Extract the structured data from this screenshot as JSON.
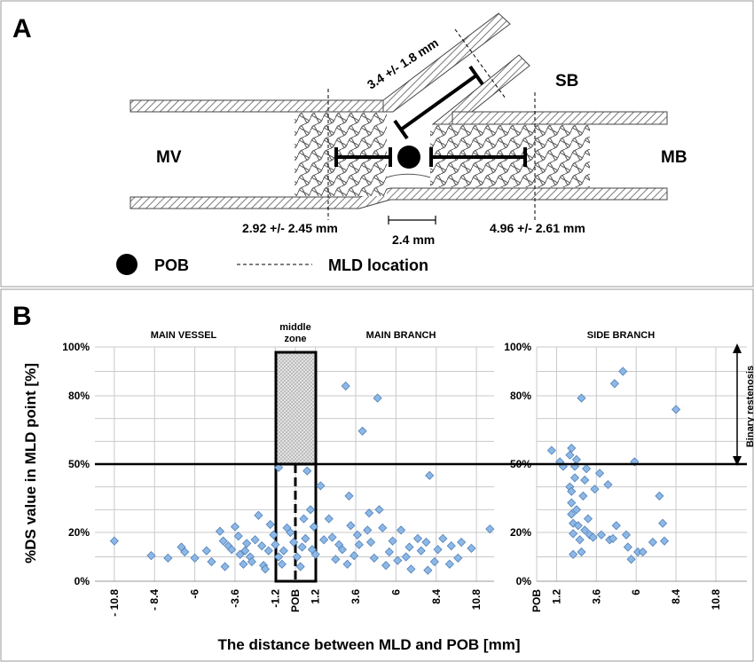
{
  "panel_a": {
    "label": "A",
    "mv": "MV",
    "mb": "MB",
    "sb": "SB",
    "dist_mv": "2.92 +/- 2.45 mm",
    "dist_mb": "4.96 +/- 2.61 mm",
    "dist_sb": "3.4 +/- 1.8 mm",
    "scale": "2.4 mm",
    "legend_pob": "POB",
    "legend_mld": "MLD location"
  },
  "panel_b": {
    "label": "B",
    "section_mv": "MAIN VESSEL",
    "section_middle_1": "middle",
    "section_middle_2": "zone",
    "section_mb": "MAIN BRANCH",
    "section_sb": "SIDE BRANCH",
    "annotation": "Binary restenosis"
  },
  "chart_data": [
    {
      "type": "scatter",
      "title": "MAIN VESSEL / MAIN BRANCH",
      "xlabel": "The distance between MLD and POB [mm]",
      "ylabel": "%DS value in MLD point [%]",
      "x_ticks": [
        "- 10.8",
        "- 8.4",
        "-6",
        "-3.6",
        "-1.2",
        "POB",
        "1.2",
        "3.6",
        "6",
        "8.4",
        "10.8"
      ],
      "y_ticks": [
        "0%",
        "20%",
        "50%",
        "80%",
        "100%"
      ],
      "xlim": [
        -12,
        12
      ],
      "ylim": [
        0,
        100
      ],
      "threshold": 50,
      "middle_zone": [
        -1.2,
        1.2
      ],
      "points": [
        [
          -10.8,
          16.5
        ],
        [
          -8.6,
          10.5
        ],
        [
          -7.6,
          9.5
        ],
        [
          -6.8,
          14
        ],
        [
          -6.6,
          12
        ],
        [
          -6.0,
          9.5
        ],
        [
          -5.3,
          12.5
        ],
        [
          -4.5,
          20.5
        ],
        [
          -4.3,
          16.5
        ],
        [
          -4.0,
          14.5
        ],
        [
          -3.8,
          13
        ],
        [
          -3.6,
          22.5
        ],
        [
          -3.4,
          18.5
        ],
        [
          -3.3,
          11
        ],
        [
          -3.1,
          7
        ],
        [
          -3.0,
          12.5
        ],
        [
          -2.9,
          15.5
        ],
        [
          -2.7,
          10
        ],
        [
          -2.6,
          8
        ],
        [
          -2.4,
          17
        ],
        [
          -2.2,
          27.5
        ],
        [
          -2.0,
          14.5
        ],
        [
          -1.9,
          6.5
        ],
        [
          -1.6,
          12.5
        ],
        [
          -1.5,
          23.5
        ],
        [
          -1.3,
          19
        ],
        [
          -1.2,
          15
        ],
        [
          -1.0,
          48.5
        ],
        [
          -1.0,
          10
        ],
        [
          -0.8,
          7
        ],
        [
          -0.7,
          12.5
        ],
        [
          -0.5,
          22
        ],
        [
          -0.3,
          20
        ],
        [
          -0.1,
          16
        ],
        [
          0.1,
          10
        ],
        [
          0.3,
          6
        ],
        [
          0.4,
          14
        ],
        [
          0.5,
          26
        ],
        [
          0.6,
          17.5
        ],
        [
          0.7,
          47
        ],
        [
          0.9,
          30
        ],
        [
          1.0,
          13
        ],
        [
          1.1,
          22.5
        ],
        [
          1.2,
          11
        ],
        [
          1.5,
          40.5
        ],
        [
          1.7,
          17
        ],
        [
          2.0,
          26
        ],
        [
          2.2,
          18
        ],
        [
          2.6,
          15
        ],
        [
          2.8,
          13
        ],
        [
          3.0,
          84
        ],
        [
          3.2,
          36
        ],
        [
          3.3,
          23
        ],
        [
          3.5,
          10.5
        ],
        [
          3.7,
          19
        ],
        [
          3.8,
          15
        ],
        [
          4.0,
          64.5
        ],
        [
          4.3,
          21
        ],
        [
          4.4,
          28.5
        ],
        [
          4.5,
          16
        ],
        [
          4.7,
          9.5
        ],
        [
          4.9,
          79
        ],
        [
          5.0,
          30
        ],
        [
          5.2,
          22
        ],
        [
          5.6,
          12
        ],
        [
          5.8,
          16.5
        ],
        [
          6.1,
          8.5
        ],
        [
          6.3,
          21
        ],
        [
          6.6,
          10
        ],
        [
          6.8,
          14
        ],
        [
          7.3,
          17.5
        ],
        [
          7.5,
          12.5
        ],
        [
          7.8,
          16
        ],
        [
          8.0,
          45
        ],
        [
          8.3,
          8
        ],
        [
          8.5,
          13
        ],
        [
          8.8,
          17.5
        ],
        [
          9.3,
          14.5
        ],
        [
          9.7,
          9.5
        ],
        [
          9.9,
          16
        ],
        [
          10.5,
          13.5
        ],
        [
          11.6,
          21.5
        ],
        [
          -5.0,
          8
        ],
        [
          -4.2,
          6
        ],
        [
          -1.8,
          5
        ],
        [
          2.4,
          9
        ],
        [
          3.1,
          7
        ],
        [
          5.4,
          6.5
        ],
        [
          6.9,
          5
        ],
        [
          7.9,
          4.5
        ],
        [
          9.2,
          7
        ]
      ]
    },
    {
      "type": "scatter",
      "title": "SIDE BRANCH",
      "x_ticks": [
        "POB",
        "1.2",
        "3.6",
        "6",
        "8.4",
        "10.8"
      ],
      "y_ticks": [
        "0%",
        "20%",
        "50%",
        "80%",
        "100%"
      ],
      "xlim": [
        0,
        12
      ],
      "ylim": [
        0,
        100
      ],
      "threshold": 50,
      "points": [
        [
          0.9,
          56
        ],
        [
          1.4,
          51
        ],
        [
          1.6,
          49
        ],
        [
          2.0,
          54
        ],
        [
          2.1,
          57
        ],
        [
          2.0,
          40
        ],
        [
          2.1,
          38
        ],
        [
          2.1,
          33
        ],
        [
          2.1,
          28
        ],
        [
          2.2,
          24
        ],
        [
          2.2,
          19.5
        ],
        [
          2.2,
          11
        ],
        [
          2.3,
          49
        ],
        [
          2.3,
          44
        ],
        [
          2.4,
          52
        ],
        [
          2.4,
          30
        ],
        [
          2.5,
          23
        ],
        [
          2.6,
          17
        ],
        [
          2.7,
          79
        ],
        [
          2.7,
          12
        ],
        [
          2.8,
          36
        ],
        [
          2.9,
          43
        ],
        [
          2.9,
          21
        ],
        [
          3.0,
          48
        ],
        [
          3.1,
          26
        ],
        [
          3.2,
          19
        ],
        [
          3.4,
          18
        ],
        [
          3.5,
          39
        ],
        [
          3.8,
          46
        ],
        [
          3.9,
          19
        ],
        [
          4.3,
          41
        ],
        [
          4.4,
          17
        ],
        [
          4.6,
          17.5
        ],
        [
          4.7,
          85
        ],
        [
          4.8,
          23
        ],
        [
          5.2,
          90
        ],
        [
          5.5,
          14
        ],
        [
          5.7,
          9
        ],
        [
          5.9,
          51
        ],
        [
          6.1,
          12
        ],
        [
          6.4,
          12
        ],
        [
          7.0,
          16
        ],
        [
          7.4,
          36
        ],
        [
          7.6,
          24
        ],
        [
          7.7,
          16.5
        ],
        [
          8.4,
          74
        ],
        [
          5.4,
          19
        ]
      ]
    }
  ]
}
